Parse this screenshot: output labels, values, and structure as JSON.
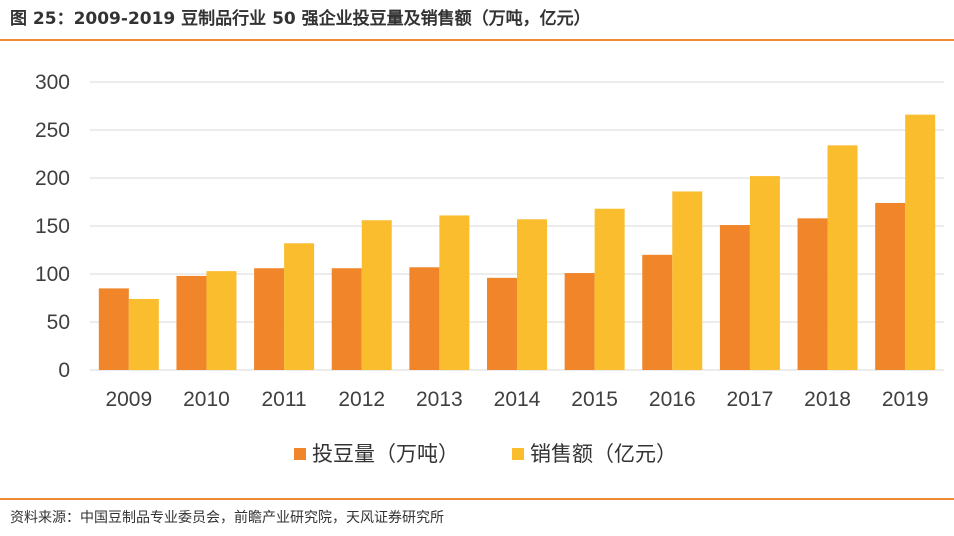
{
  "header": {
    "title": "图 25：2009-2019 豆制品行业 50 强企业投豆量及销售额（万吨，亿元）"
  },
  "footer": {
    "source": "资料来源：中国豆制品专业委员会，前瞻产业研究院，天风证券研究所"
  },
  "colors": {
    "rule": "#ED8B33",
    "series_1": "#F0852A",
    "series_2": "#F9BD2E",
    "grid": "#D9D9D9"
  },
  "chart_data": {
    "type": "bar",
    "title": "2009-2019 豆制品行业 50 强企业投豆量及销售额（万吨，亿元）",
    "categories": [
      "2009",
      "2010",
      "2011",
      "2012",
      "2013",
      "2014",
      "2015",
      "2016",
      "2017",
      "2018",
      "2019"
    ],
    "series": [
      {
        "name": "投豆量（万吨）",
        "values": [
          85,
          98,
          106,
          106,
          107,
          96,
          101,
          120,
          151,
          158,
          174
        ]
      },
      {
        "name": "销售额（亿元）",
        "values": [
          74,
          103,
          132,
          156,
          161,
          157,
          168,
          186,
          202,
          234,
          266
        ]
      }
    ],
    "ylim": [
      0,
      300
    ],
    "yticks": [
      0,
      50,
      100,
      150,
      200,
      250,
      300
    ],
    "xlabel": "",
    "ylabel": "",
    "grid": true,
    "legend": "bottom"
  }
}
